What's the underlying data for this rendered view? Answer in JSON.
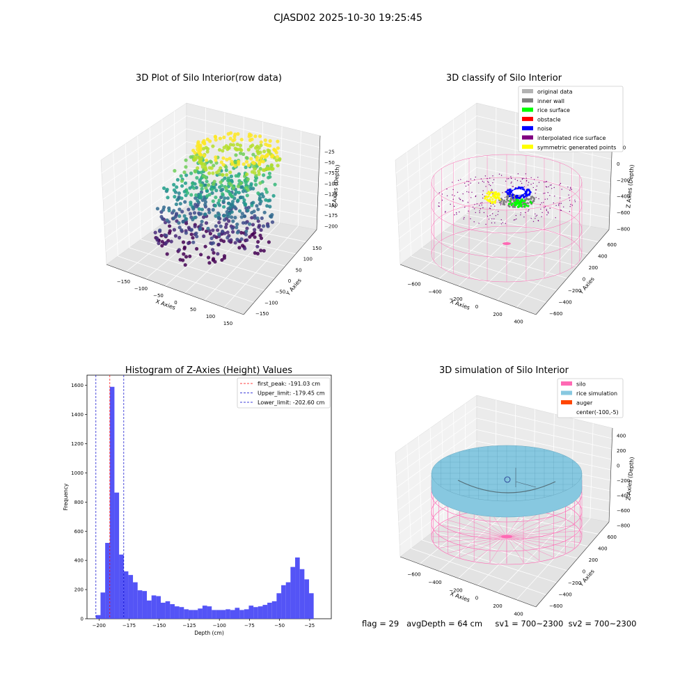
{
  "figure": {
    "suptitle": "CJASD02 2025-10-30 19:25:45",
    "status_line": "flag = 29   avgDepth = 64 cm     sv1 = 700~2300  sv2 = 700~2300"
  },
  "colors": {
    "hist_bar": "#4b4bf5",
    "first_peak": "#ff0000",
    "limits": "#0000cc",
    "silo": "#ff69b4",
    "rice_simulation": "#87c8e0",
    "auger": "#ff4500",
    "original_data": "#b3b3b3",
    "inner_wall": "#808080",
    "rice_surface": "#00ff00",
    "obstacle": "#ff0000",
    "noise": "#0000ff",
    "interpolated_rice_surface": "#800080",
    "symmetric_generated_points": "#ffff00"
  },
  "chart_data": [
    {
      "type": "scatter",
      "title": "3D Plot of Silo Interior(row data)",
      "xlabel": "X Axies",
      "ylabel": "Y Axies",
      "zlabel": "Z Axies (Depth)",
      "xticks": [
        "−150",
        "−100",
        "−50",
        "0",
        "50",
        "100",
        "150"
      ],
      "yticks": [
        "−150",
        "−100",
        "−50",
        "0",
        "50",
        "100",
        "150"
      ],
      "zticks": [
        "−25",
        "−50",
        "−75",
        "−100",
        "−125",
        "−150",
        "−175",
        "−200"
      ],
      "colormap": "viridis",
      "description_points": "ring of points near z=-25 (yellow) down to z=-200 (purple)"
    },
    {
      "type": "scatter",
      "title": "3D classify of Silo Interior",
      "xlabel": "X Axies",
      "ylabel": "Y Axies",
      "zlabel": "Z Axies (Depth)",
      "xticks": [
        "−600",
        "−400",
        "−200",
        "0",
        "200",
        "400"
      ],
      "yticks": [
        "−600",
        "−400",
        "−200",
        "0",
        "200",
        "400",
        "600"
      ],
      "zticks": [
        "200",
        "0",
        "−200",
        "−400",
        "−600",
        "−800"
      ],
      "legend_position": "upper-right",
      "legend": [
        {
          "label": "original data",
          "color": "#b3b3b3"
        },
        {
          "label": "inner wall",
          "color": "#808080"
        },
        {
          "label": "rice surface",
          "color": "#00ff00"
        },
        {
          "label": "obstacle",
          "color": "#ff0000"
        },
        {
          "label": "noise",
          "color": "#0000ff"
        },
        {
          "label": "interpolated rice surface",
          "color": "#800080"
        },
        {
          "label": "symmetric generated points",
          "color": "#ffff00"
        }
      ]
    },
    {
      "type": "bar",
      "title": "Histogram of Z-Axies (Height) Values",
      "xlabel": "Depth (cm)",
      "ylabel": "Frequency",
      "xlim": [
        -210,
        -7
      ],
      "ylim": [
        0,
        1670
      ],
      "xticks": [
        -200,
        -175,
        -150,
        -125,
        -100,
        -75,
        -50,
        -25
      ],
      "xtick_labels": [
        "−200",
        "−175",
        "−150",
        "−125",
        "−100",
        "−75",
        "−50",
        "−25"
      ],
      "yticks": [
        0,
        200,
        400,
        600,
        800,
        1000,
        1200,
        1400,
        1600
      ],
      "bin_start": -202.6,
      "bin_width": 3.85,
      "values": [
        25,
        180,
        520,
        1590,
        865,
        440,
        325,
        300,
        250,
        195,
        190,
        125,
        160,
        155,
        110,
        120,
        100,
        85,
        80,
        65,
        60,
        60,
        70,
        90,
        85,
        60,
        60,
        60,
        65,
        60,
        75,
        60,
        65,
        90,
        80,
        85,
        95,
        110,
        120,
        175,
        230,
        250,
        355,
        420,
        340,
        270,
        175
      ],
      "legend_position": "upper-right",
      "vlines": [
        {
          "label": "first_peak: -191.03 cm",
          "x": -191.03,
          "color": "#ff0000"
        },
        {
          "label": "Upper_limit: -179.45 cm",
          "x": -179.45,
          "color": "#0000cc"
        },
        {
          "label": "Lower_limit: -202.60 cm",
          "x": -202.6,
          "color": "#0000cc"
        }
      ]
    },
    {
      "type": "scatter",
      "title": "3D simulation of Silo Interior",
      "xlabel": "X Axies",
      "ylabel": "Y Axies",
      "zlabel": "Z Axies (Depth)",
      "xticks": [
        "−600",
        "−400",
        "−200",
        "0",
        "200",
        "400"
      ],
      "yticks": [
        "−600",
        "−400",
        "−200",
        "0",
        "200",
        "400",
        "600"
      ],
      "zticks": [
        "400",
        "200",
        "0",
        "−200",
        "−400",
        "−600",
        "−800"
      ],
      "legend_position": "upper-right",
      "legend": [
        {
          "label": "silo",
          "color": "#ff69b4"
        },
        {
          "label": "rice simulation",
          "color": "#87c8e0"
        },
        {
          "label": "auger",
          "color": "#ff4500"
        },
        {
          "label": "center(-100,-5)",
          "color": ""
        }
      ]
    }
  ]
}
